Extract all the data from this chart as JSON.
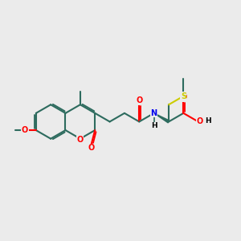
{
  "background_color": "#ebebeb",
  "bond_color": "#2d6b5e",
  "bond_width": 1.5,
  "dbo": 0.06,
  "atom_colors": {
    "O": "#ff0000",
    "N": "#0000ee",
    "S": "#cccc00",
    "C": "#2d6b5e",
    "H": "#000000"
  },
  "font_size": 7.0
}
